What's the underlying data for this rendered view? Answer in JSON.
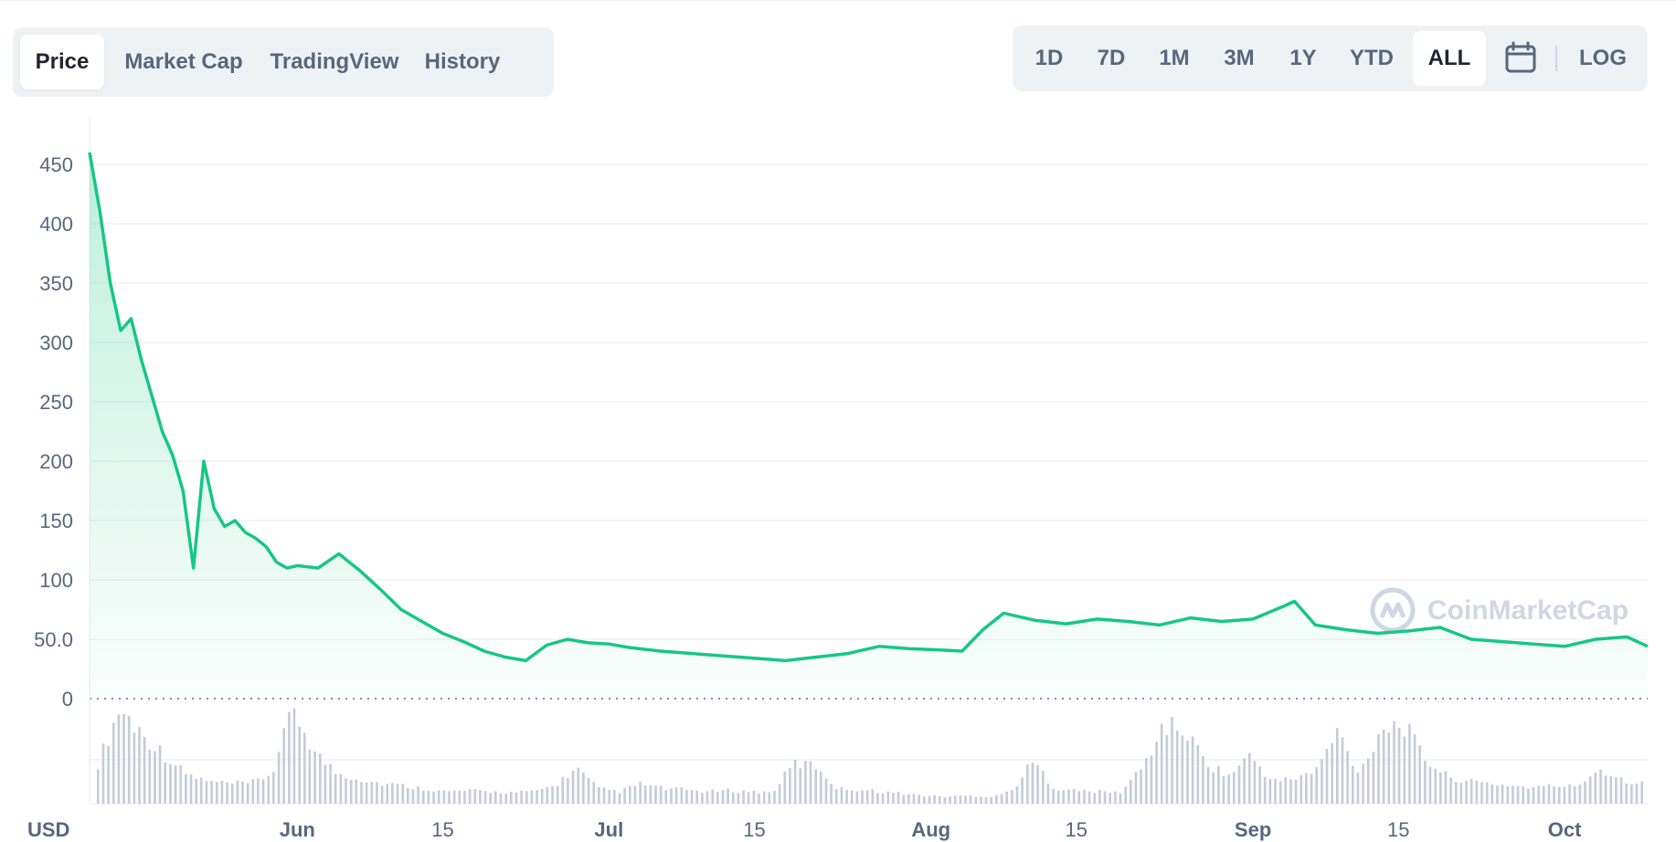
{
  "tabs": [
    {
      "label": "Price",
      "active": true
    },
    {
      "label": "Market Cap",
      "active": false
    },
    {
      "label": "TradingView",
      "active": false
    },
    {
      "label": "History",
      "active": false
    }
  ],
  "ranges": [
    {
      "label": "1D",
      "active": false
    },
    {
      "label": "7D",
      "active": false
    },
    {
      "label": "1M",
      "active": false
    },
    {
      "label": "3M",
      "active": false
    },
    {
      "label": "1Y",
      "active": false
    },
    {
      "label": "YTD",
      "active": false
    },
    {
      "label": "ALL",
      "active": true
    }
  ],
  "calendar_icon": "calendar-icon",
  "log_label": "LOG",
  "watermark": {
    "text": "CoinMarketCap",
    "icon": "coinmarketcap-logo-icon"
  },
  "colors": {
    "line": "#16c784",
    "area_top": "#16c784",
    "volume": "#c4cbd8",
    "grid": "#eff2f5",
    "text": "#58667e"
  },
  "chart_data": {
    "type": "line",
    "currency_label": "USD",
    "ylim": [
      0,
      450
    ],
    "y_ticks": [
      "0",
      "50.0",
      "100",
      "150",
      "200",
      "250",
      "300",
      "350",
      "400",
      "450"
    ],
    "x_ticks": [
      {
        "label": "Jun",
        "bold": true,
        "date": "2021-06-01"
      },
      {
        "label": "15",
        "bold": false,
        "date": "2021-06-15"
      },
      {
        "label": "Jul",
        "bold": true,
        "date": "2021-07-01"
      },
      {
        "label": "15",
        "bold": false,
        "date": "2021-07-15"
      },
      {
        "label": "Aug",
        "bold": true,
        "date": "2021-08-01"
      },
      {
        "label": "15",
        "bold": false,
        "date": "2021-08-15"
      },
      {
        "label": "Sep",
        "bold": true,
        "date": "2021-09-01"
      },
      {
        "label": "15",
        "bold": false,
        "date": "2021-09-15"
      },
      {
        "label": "Oct",
        "bold": true,
        "date": "2021-10-01"
      }
    ],
    "grid": true,
    "series": [
      {
        "x": [
          "2021-05-12",
          "2021-05-13",
          "2021-05-14",
          "2021-05-15",
          "2021-05-16",
          "2021-05-17",
          "2021-05-18",
          "2021-05-19",
          "2021-05-20",
          "2021-05-21",
          "2021-05-22",
          "2021-05-23",
          "2021-05-24",
          "2021-05-25",
          "2021-05-26",
          "2021-05-27",
          "2021-05-28",
          "2021-05-29",
          "2021-05-30",
          "2021-05-31",
          "2021-06-01",
          "2021-06-03",
          "2021-06-05",
          "2021-06-07",
          "2021-06-09",
          "2021-06-11",
          "2021-06-13",
          "2021-06-15",
          "2021-06-17",
          "2021-06-19",
          "2021-06-21",
          "2021-06-23",
          "2021-06-25",
          "2021-06-27",
          "2021-06-29",
          "2021-07-01",
          "2021-07-03",
          "2021-07-06",
          "2021-07-09",
          "2021-07-12",
          "2021-07-15",
          "2021-07-18",
          "2021-07-21",
          "2021-07-24",
          "2021-07-27",
          "2021-07-30",
          "2021-08-02",
          "2021-08-04",
          "2021-08-06",
          "2021-08-08",
          "2021-08-11",
          "2021-08-14",
          "2021-08-17",
          "2021-08-20",
          "2021-08-23",
          "2021-08-26",
          "2021-08-29",
          "2021-09-01",
          "2021-09-04",
          "2021-09-05",
          "2021-09-07",
          "2021-09-10",
          "2021-09-13",
          "2021-09-16",
          "2021-09-19",
          "2021-09-22",
          "2021-09-25",
          "2021-09-28",
          "2021-10-01",
          "2021-10-04",
          "2021-10-07",
          "2021-10-09"
        ],
        "values": [
          460,
          410,
          350,
          310,
          320,
          285,
          255,
          225,
          205,
          175,
          110,
          200,
          160,
          145,
          150,
          140,
          135,
          128,
          115,
          110,
          112,
          110,
          122,
          108,
          92,
          75,
          65,
          55,
          48,
          40,
          35,
          32,
          45,
          50,
          47,
          46,
          43,
          40,
          38,
          36,
          34,
          32,
          35,
          38,
          44,
          42,
          41,
          40,
          58,
          72,
          66,
          63,
          67,
          65,
          62,
          68,
          65,
          67,
          78,
          82,
          62,
          58,
          55,
          57,
          60,
          50,
          48,
          46,
          44,
          50,
          52,
          44
        ]
      }
    ],
    "volume": {
      "note_units": "relative",
      "values": [
        0.4,
        0.95,
        0.7,
        0.5,
        0.3,
        0.22,
        0.2,
        0.2,
        0.3,
        0.95,
        0.5,
        0.3,
        0.25,
        0.2,
        0.18,
        0.15,
        0.12,
        0.13,
        0.12,
        0.11,
        0.12,
        0.18,
        0.35,
        0.15,
        0.12,
        0.2,
        0.15,
        0.14,
        0.12,
        0.13,
        0.12,
        0.11,
        0.4,
        0.38,
        0.15,
        0.14,
        0.12,
        0.1,
        0.08,
        0.07,
        0.08,
        0.07,
        0.12,
        0.42,
        0.15,
        0.13,
        0.12,
        0.11,
        0.35,
        0.78,
        0.72,
        0.4,
        0.28,
        0.48,
        0.22,
        0.25,
        0.32,
        0.72,
        0.3,
        0.75,
        0.8,
        0.45,
        0.28,
        0.22,
        0.2,
        0.18,
        0.16,
        0.18,
        0.17,
        0.35,
        0.25,
        0.2
      ]
    }
  }
}
